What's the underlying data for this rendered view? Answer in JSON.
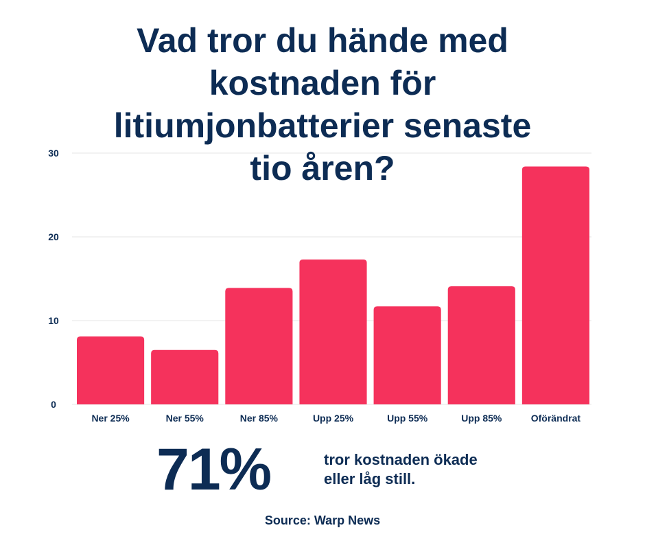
{
  "colors": {
    "text": "#0d2c54",
    "bar": "#f5325c",
    "grid": "#e6e6e6"
  },
  "title_lines": [
    "Vad tror du hände med",
    "kostnaden för",
    "litiumjonbatterier senaste",
    "tio åren?"
  ],
  "chart_data": {
    "type": "bar",
    "categories": [
      "Ner 25%",
      "Ner 55%",
      "Ner 85%",
      "Upp 25%",
      "Upp 55%",
      "Upp 85%",
      "Oförändrat"
    ],
    "values": [
      8.1,
      6.5,
      13.9,
      17.3,
      11.7,
      14.1,
      28.4
    ],
    "ylim": [
      0,
      30
    ],
    "yticks": [
      0,
      10,
      20,
      30
    ],
    "grid": true,
    "legend": "none"
  },
  "stat": {
    "value": "71%",
    "line1": "tror kostnaden ökade",
    "line2": "eller låg still."
  },
  "source": "Source: Warp News"
}
